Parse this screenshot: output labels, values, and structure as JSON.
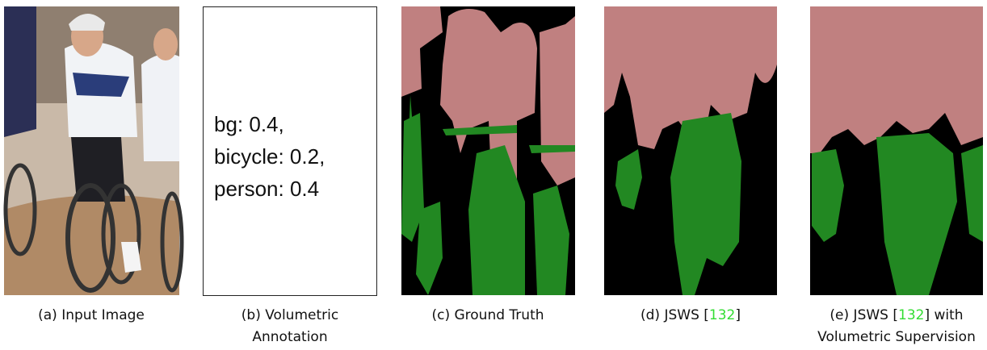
{
  "panels": [
    {
      "caption_lines": [
        [
          "(a) Input Image"
        ]
      ]
    },
    {
      "caption_lines": [
        [
          "(b) Volumetric"
        ],
        [
          "Annotation"
        ]
      ],
      "annotation": [
        "bg: 0.4,",
        "bicycle: 0.2,",
        "person: 0.4"
      ]
    },
    {
      "caption_lines": [
        [
          "(c) Ground Truth"
        ]
      ]
    },
    {
      "caption_lines": [
        [
          "(d) JSWS [",
          "132",
          "]"
        ]
      ]
    },
    {
      "caption_lines": [
        [
          "(e) JSWS [",
          "132",
          "] with"
        ],
        [
          "Volumetric Supervision"
        ]
      ]
    }
  ]
}
